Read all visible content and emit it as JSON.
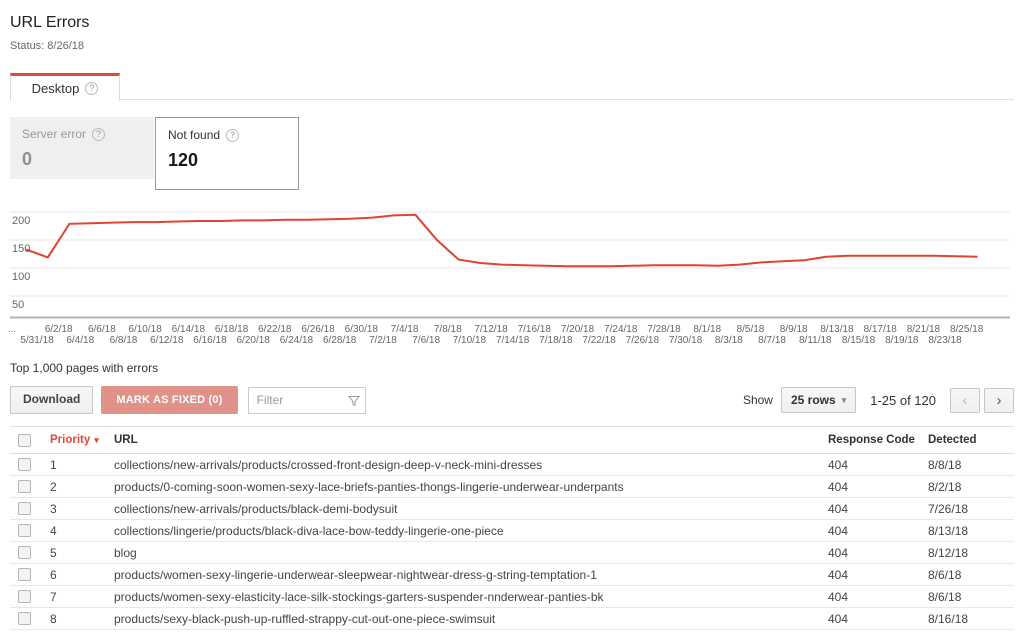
{
  "page": {
    "title": "URL Errors",
    "status": "Status: 8/26/18"
  },
  "tab": {
    "label": "Desktop"
  },
  "cards": {
    "server_error": {
      "label": "Server error",
      "value": "0"
    },
    "not_found": {
      "label": "Not found",
      "value": "120"
    }
  },
  "chart_data": {
    "type": "line",
    "title": "",
    "xlabel": "",
    "ylabel": "",
    "grid": true,
    "legend": "none",
    "yticks": [
      200,
      150,
      100,
      50
    ],
    "ylim": [
      0,
      210
    ],
    "line_color": "#e0432f",
    "x": [
      "5/30",
      "6/1",
      "6/3",
      "6/5",
      "6/7",
      "6/9",
      "6/11",
      "6/13",
      "6/15",
      "6/17",
      "6/19",
      "6/21",
      "6/23",
      "6/25",
      "6/27",
      "6/29",
      "7/1",
      "7/3",
      "7/5",
      "7/7",
      "7/9",
      "7/11",
      "7/13",
      "7/15",
      "7/17",
      "7/19",
      "7/21",
      "7/23",
      "7/25",
      "7/27",
      "7/29",
      "7/31",
      "8/2",
      "8/4",
      "8/6",
      "8/8",
      "8/10",
      "8/12",
      "8/14",
      "8/16",
      "8/18",
      "8/20",
      "8/22",
      "8/24",
      "8/26"
    ],
    "series": [
      {
        "name": "Not found",
        "values": [
          133,
          119,
          179,
          180,
          181,
          182,
          182,
          183,
          184,
          184,
          185,
          185,
          186,
          186,
          187,
          188,
          190,
          194,
          195,
          150,
          115,
          109,
          106,
          105,
          104,
          103,
          103,
          103,
          104,
          105,
          105,
          105,
          104,
          106,
          110,
          112,
          114,
          120,
          122,
          122,
          122,
          122,
          122,
          121,
          120
        ]
      }
    ],
    "xticks_top": [
      "...",
      "6/2/18",
      "6/6/18",
      "6/10/18",
      "6/14/18",
      "6/18/18",
      "6/22/18",
      "6/26/18",
      "6/30/18",
      "7/4/18",
      "7/8/18",
      "7/12/18",
      "7/16/18",
      "7/20/18",
      "7/24/18",
      "7/28/18",
      "8/1/18",
      "8/5/18",
      "8/9/18",
      "8/13/18",
      "8/17/18",
      "8/21/18",
      "8/25/18"
    ],
    "xticks_bottom": [
      "5/31/18",
      "6/4/18",
      "6/8/18",
      "6/12/18",
      "6/16/18",
      "6/20/18",
      "6/24/18",
      "6/28/18",
      "7/2/18",
      "7/6/18",
      "7/10/18",
      "7/14/18",
      "7/18/18",
      "7/22/18",
      "7/26/18",
      "7/30/18",
      "8/3/18",
      "8/7/18",
      "8/11/18",
      "8/15/18",
      "8/19/18",
      "8/23/18"
    ]
  },
  "table_section": {
    "heading": "Top 1,000 pages with errors",
    "toolbar": {
      "download": "Download",
      "mark_fixed": "MARK AS FIXED (0)",
      "filter_placeholder": "Filter",
      "show": "Show",
      "rows_select": "25 rows",
      "range": "1-25 of 120"
    },
    "columns": {
      "priority": "Priority",
      "url": "URL",
      "code": "Response Code",
      "detected": "Detected"
    },
    "rows": [
      {
        "priority": "1",
        "url": "collections/new-arrivals/products/crossed-front-design-deep-v-neck-mini-dresses",
        "code": "404",
        "detected": "8/8/18"
      },
      {
        "priority": "2",
        "url": "products/0-coming-soon-women-sexy-lace-briefs-panties-thongs-lingerie-underwear-underpants",
        "code": "404",
        "detected": "8/2/18"
      },
      {
        "priority": "3",
        "url": "collections/new-arrivals/products/black-demi-bodysuit",
        "code": "404",
        "detected": "7/26/18"
      },
      {
        "priority": "4",
        "url": "collections/lingerie/products/black-diva-lace-bow-teddy-lingerie-one-piece",
        "code": "404",
        "detected": "8/13/18"
      },
      {
        "priority": "5",
        "url": "blog",
        "code": "404",
        "detected": "8/12/18"
      },
      {
        "priority": "6",
        "url": "products/women-sexy-lingerie-underwear-sleepwear-nightwear-dress-g-string-temptation-1",
        "code": "404",
        "detected": "8/6/18"
      },
      {
        "priority": "7",
        "url": "products/women-sexy-elasticity-lace-silk-stockings-garters-suspender-nnderwear-panties-bk",
        "code": "404",
        "detected": "8/6/18"
      },
      {
        "priority": "8",
        "url": "products/sexy-black-push-up-ruffled-strappy-cut-out-one-piece-swimsuit",
        "code": "404",
        "detected": "8/16/18"
      }
    ]
  },
  "colors": {
    "accent_red": "#dd4b39",
    "mark_fixed_bg": "#e09289",
    "line_red": "#e0432f",
    "grid_gray": "#e6e6e6"
  }
}
